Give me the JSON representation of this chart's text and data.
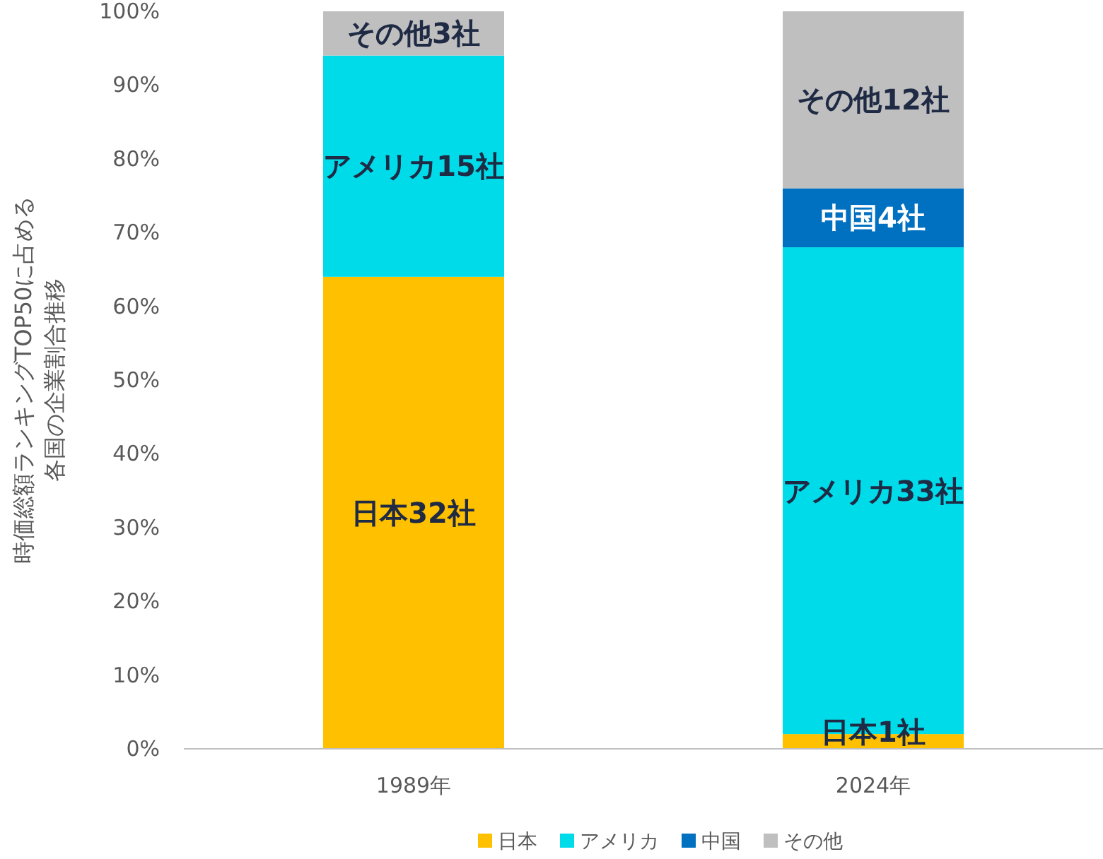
{
  "chart_data": {
    "type": "bar",
    "stacked": true,
    "categories": [
      "1989年",
      "2024年"
    ],
    "ylabel": "時価総額ランキングTOP50に占める各国の企業割合推移",
    "ylim": [
      0,
      100
    ],
    "yticks": [
      {
        "value": 0,
        "label": "0%"
      },
      {
        "value": 10,
        "label": "10%"
      },
      {
        "value": 20,
        "label": "20%"
      },
      {
        "value": 30,
        "label": "30%"
      },
      {
        "value": 40,
        "label": "40%"
      },
      {
        "value": 50,
        "label": "50%"
      },
      {
        "value": 60,
        "label": "60%"
      },
      {
        "value": 70,
        "label": "70%"
      },
      {
        "value": 80,
        "label": "80%"
      },
      {
        "value": 90,
        "label": "90%"
      },
      {
        "value": 100,
        "label": "100%"
      }
    ],
    "legend": "bottom",
    "grid": false,
    "series": [
      {
        "name": "日本",
        "color": "#ffc000",
        "values": [
          64,
          2
        ],
        "value_labels": [
          "日本32社",
          "日本1社"
        ]
      },
      {
        "name": "アメリカ",
        "color": "#00dbe9",
        "values": [
          30,
          66
        ],
        "value_labels": [
          "アメリカ15社",
          "アメリカ33社"
        ]
      },
      {
        "name": "中国",
        "color": "#0070c0",
        "values": [
          0,
          8
        ],
        "value_labels": [
          null,
          "中国4社"
        ]
      },
      {
        "name": "その他",
        "color": "#bfbfbf",
        "values": [
          6,
          24
        ],
        "value_labels": [
          "その他3社",
          "その他12社"
        ]
      }
    ]
  }
}
